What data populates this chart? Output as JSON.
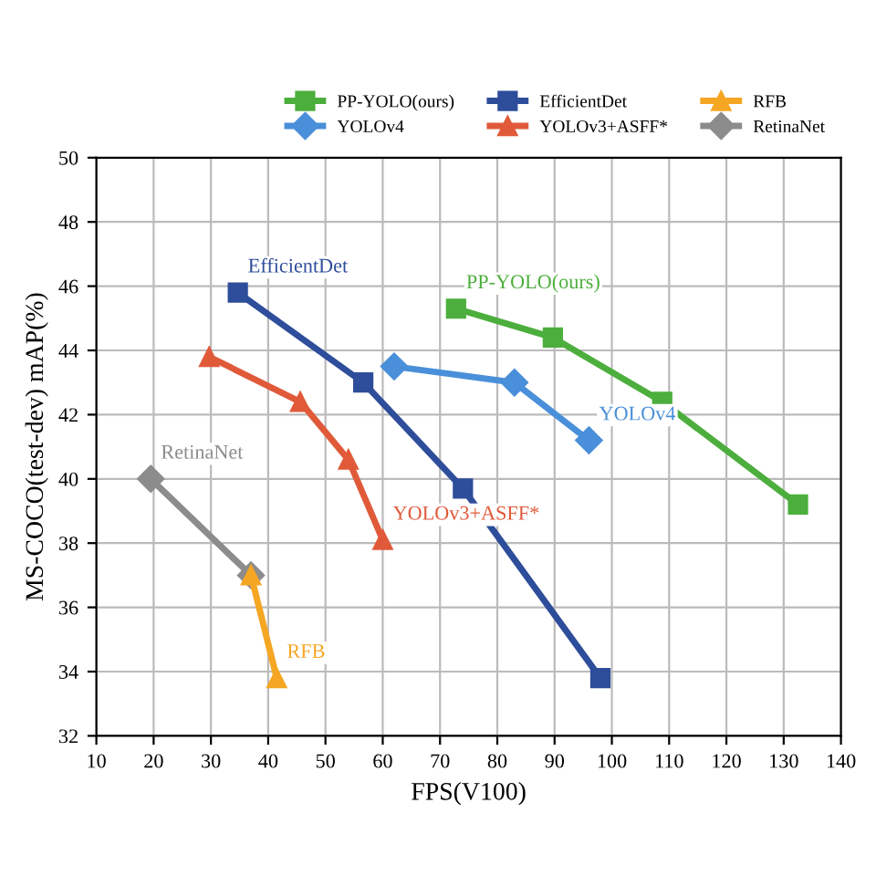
{
  "chart_data": {
    "type": "line",
    "xlabel": "FPS(V100)",
    "ylabel": "MS-COCO(test-dev) mAP(%)",
    "xlim": [
      10,
      140
    ],
    "xticks": [
      10,
      20,
      30,
      40,
      50,
      60,
      70,
      80,
      90,
      100,
      110,
      120,
      130,
      140
    ],
    "ylim": [
      32,
      50
    ],
    "yticks": [
      32,
      34,
      36,
      38,
      40,
      42,
      44,
      46,
      48,
      50
    ],
    "grid": true,
    "legend": "top right",
    "marker": "square",
    "series": [
      {
        "name": "PP-YOLO(ours)",
        "color": "#4cae3c",
        "x": [
          72.8,
          89.7,
          108.8,
          132.5
        ],
        "values": [
          45.3,
          44.4,
          42.4,
          39.2
        ]
      },
      {
        "name": "YOLOv4",
        "color": "#4a8fd9",
        "marker": "diamond",
        "x": [
          62,
          83,
          96
        ],
        "values": [
          43.5,
          43.0,
          41.2
        ]
      },
      {
        "name": "EfficientDet",
        "color": "#2e4d9a",
        "x": [
          34.7,
          56.6,
          74,
          98
        ],
        "values": [
          45.8,
          43.0,
          39.7,
          33.8
        ]
      },
      {
        "name": "YOLOv3+ASFF*",
        "color": "#e05a3a",
        "marker": "triangle",
        "x": [
          29.7,
          45.6,
          54,
          60
        ],
        "values": [
          43.8,
          42.4,
          40.6,
          38.1
        ]
      },
      {
        "name": "RFB",
        "color": "#f5a623",
        "marker": "triangle",
        "x": [
          37,
          41.5
        ],
        "values": [
          37.0,
          33.8
        ]
      },
      {
        "name": "RetinaNet",
        "color": "#8c8c8c",
        "marker": "diamond",
        "x": [
          19.5,
          37
        ],
        "values": [
          40.0,
          37.0
        ]
      }
    ],
    "annotations": [
      {
        "text": "PP-YOLO(ours)",
        "x": 72.8,
        "y": 45.3
      },
      {
        "text": "YOLOv4",
        "x": 96,
        "y": 41.2
      },
      {
        "text": "EfficientDet",
        "x": 34.7,
        "y": 45.8
      },
      {
        "text": "YOLOv3+ASFF*",
        "x": 60,
        "y": 38.1
      },
      {
        "text": "RFB",
        "x": 41.5,
        "y": 33.8
      },
      {
        "text": "RetinaNet",
        "x": 19.5,
        "y": 40.0
      }
    ]
  }
}
